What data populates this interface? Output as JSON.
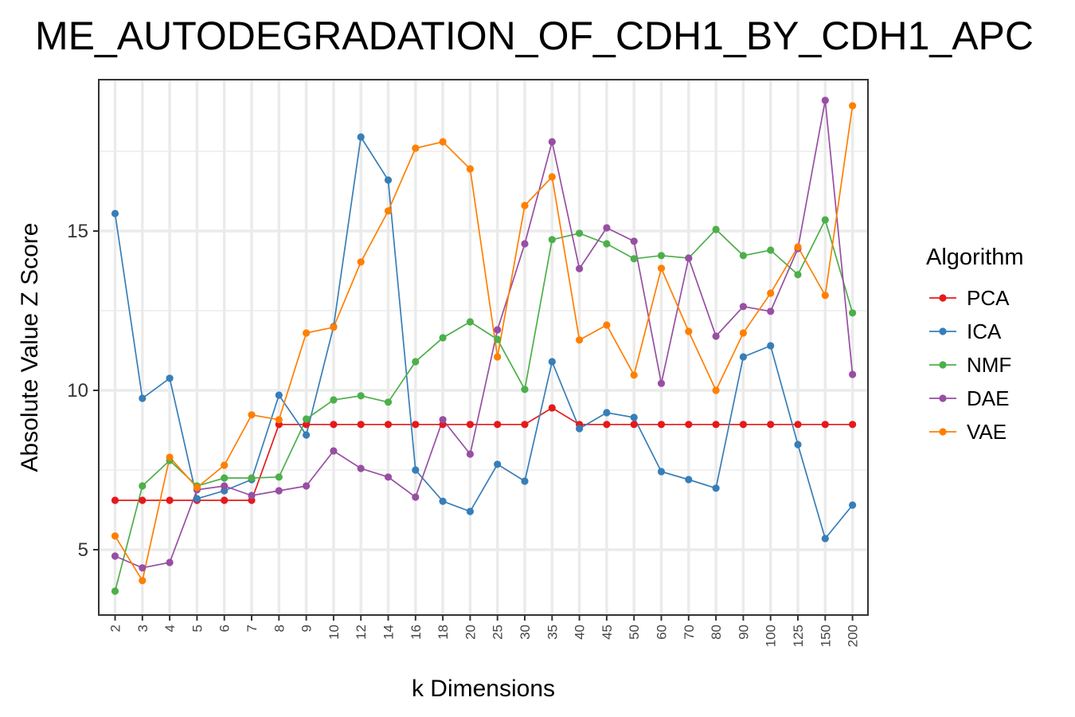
{
  "chart_data": {
    "type": "line",
    "title": "ME_AUTODEGRADATION_OF_CDH1_BY_CDH1_APC",
    "xlabel": "k Dimensions",
    "ylabel": "Absolute Value Z Score",
    "categories": [
      "2",
      "3",
      "4",
      "5",
      "6",
      "7",
      "8",
      "9",
      "10",
      "12",
      "14",
      "16",
      "18",
      "20",
      "25",
      "30",
      "35",
      "40",
      "45",
      "50",
      "60",
      "70",
      "80",
      "90",
      "100",
      "125",
      "150",
      "200"
    ],
    "y_ticks": [
      5,
      10,
      15
    ],
    "ylim": [
      2.95,
      19.75
    ],
    "grid": true,
    "legend": {
      "title": "Algorithm",
      "position": "right"
    },
    "series": [
      {
        "name": "PCA",
        "color": "#E41A1C",
        "values": [
          6.55,
          6.55,
          6.55,
          6.55,
          6.55,
          6.55,
          8.93,
          8.93,
          8.93,
          8.93,
          8.93,
          8.93,
          8.93,
          8.93,
          8.93,
          8.93,
          9.45,
          8.93,
          8.93,
          8.93,
          8.93,
          8.93,
          8.93,
          8.93,
          8.93,
          8.93,
          8.93,
          8.93
        ]
      },
      {
        "name": "ICA",
        "color": "#377EB8",
        "values": [
          15.55,
          9.75,
          10.38,
          6.6,
          6.85,
          7.2,
          9.85,
          8.6,
          12.0,
          17.95,
          16.6,
          7.5,
          6.52,
          6.2,
          7.68,
          7.15,
          10.9,
          8.8,
          9.3,
          9.15,
          7.45,
          7.2,
          6.93,
          11.05,
          11.4,
          8.3,
          5.35,
          6.4
        ]
      },
      {
        "name": "NMF",
        "color": "#4DAF4A",
        "values": [
          3.7,
          7.0,
          7.8,
          7.0,
          7.25,
          7.25,
          7.28,
          9.1,
          9.7,
          9.83,
          9.63,
          10.9,
          11.65,
          12.15,
          11.6,
          10.03,
          14.73,
          14.93,
          14.6,
          14.13,
          14.23,
          14.15,
          15.05,
          14.23,
          14.4,
          13.63,
          15.35,
          12.43
        ]
      },
      {
        "name": "DAE",
        "color": "#984EA3",
        "values": [
          4.8,
          4.43,
          4.6,
          6.88,
          7.0,
          6.7,
          6.85,
          7.0,
          8.1,
          7.55,
          7.28,
          6.65,
          9.08,
          8.0,
          11.9,
          14.6,
          17.8,
          13.82,
          15.1,
          14.68,
          10.22,
          14.15,
          11.7,
          12.63,
          12.48,
          14.45,
          19.1,
          10.5
        ]
      },
      {
        "name": "VAE",
        "color": "#FF7F00",
        "values": [
          5.43,
          4.03,
          7.9,
          6.95,
          7.65,
          9.23,
          9.08,
          11.8,
          11.98,
          14.03,
          15.63,
          17.6,
          17.8,
          16.95,
          11.05,
          15.8,
          16.7,
          11.58,
          12.05,
          10.48,
          13.83,
          11.85,
          10.0,
          11.8,
          13.05,
          14.5,
          12.98,
          18.93
        ]
      }
    ]
  }
}
